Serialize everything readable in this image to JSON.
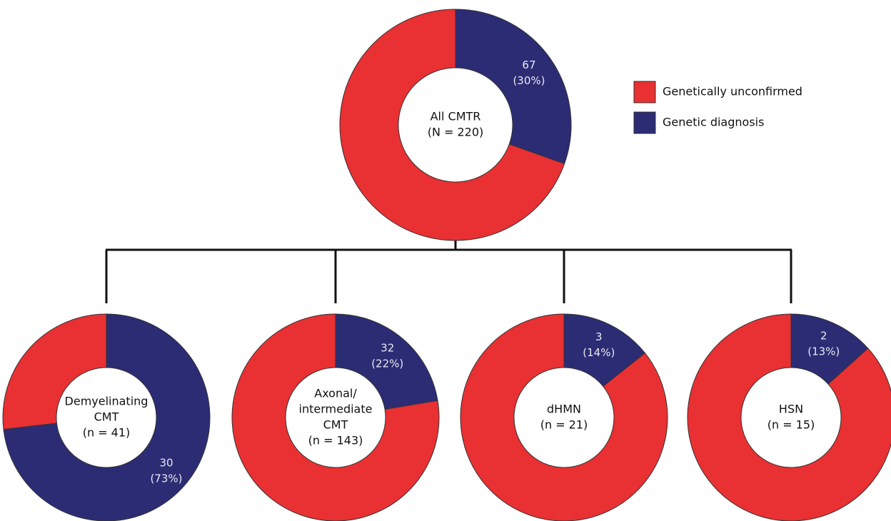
{
  "chart_data": [
    {
      "type": "pie",
      "donut": true,
      "title": [
        "All CMTR",
        "(N = 220)"
      ],
      "categories": [
        "Genetically unconfirmed",
        "Genetic diagnosis"
      ],
      "colors": [
        "#e93033",
        "#2b2c74"
      ],
      "values": [
        153,
        67
      ],
      "value_labels": [
        null,
        "67"
      ],
      "percent_labels": [
        null,
        "(30%)"
      ],
      "legend": "right"
    },
    {
      "type": "pie",
      "donut": true,
      "title": [
        "Demyelinating",
        "CMT",
        "(n = 41)"
      ],
      "categories": [
        "Genetically unconfirmed",
        "Genetic diagnosis"
      ],
      "colors": [
        "#e93033",
        "#2b2c74"
      ],
      "values": [
        11,
        30
      ],
      "value_labels": [
        null,
        "30"
      ],
      "percent_labels": [
        null,
        "(73%)"
      ]
    },
    {
      "type": "pie",
      "donut": true,
      "title": [
        "Axonal/",
        "intermediate",
        "CMT",
        "(n = 143)"
      ],
      "categories": [
        "Genetically unconfirmed",
        "Genetic diagnosis"
      ],
      "colors": [
        "#e93033",
        "#2b2c74"
      ],
      "values": [
        111,
        32
      ],
      "value_labels": [
        null,
        "32"
      ],
      "percent_labels": [
        null,
        "(22%)"
      ]
    },
    {
      "type": "pie",
      "donut": true,
      "title": [
        "dHMN",
        "(n = 21)"
      ],
      "categories": [
        "Genetically unconfirmed",
        "Genetic diagnosis"
      ],
      "colors": [
        "#e93033",
        "#2b2c74"
      ],
      "values": [
        18,
        3
      ],
      "value_labels": [
        null,
        "3"
      ],
      "percent_labels": [
        null,
        "(14%)"
      ]
    },
    {
      "type": "pie",
      "donut": true,
      "title": [
        "HSN",
        "(n = 15)"
      ],
      "categories": [
        "Genetically unconfirmed",
        "Genetic diagnosis"
      ],
      "colors": [
        "#e93033",
        "#2b2c74"
      ],
      "values": [
        13,
        2
      ],
      "value_labels": [
        null,
        "2"
      ],
      "percent_labels": [
        null,
        "(13%)"
      ]
    }
  ]
}
